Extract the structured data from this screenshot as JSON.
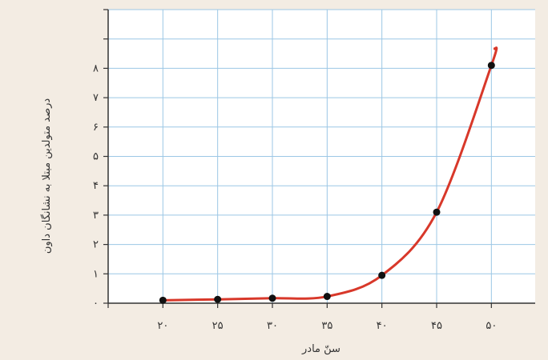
{
  "chart_data": {
    "type": "line",
    "xlabel": "سنّ مادر",
    "ylabel": "درصد متولدین مبتلا به نشانگان داون",
    "x_ticks": [
      20,
      25,
      30,
      35,
      40,
      45,
      50
    ],
    "x_tick_labels": [
      "۲۰",
      "۲۵",
      "۳۰",
      "۳۵",
      "۴۰",
      "۴۵",
      "۵۰"
    ],
    "y_ticks": [
      0,
      1,
      2,
      3,
      4,
      5,
      6,
      7,
      8
    ],
    "y_tick_labels": [
      "۰",
      "۱",
      "۲",
      "۳",
      "۴",
      "۵",
      "۶",
      "۷",
      "۸"
    ],
    "xlim": [
      15,
      54
    ],
    "ylim": [
      0,
      10
    ],
    "grid": true,
    "series": [
      {
        "x": [
          20,
          25,
          30,
          35,
          40,
          45,
          50
        ],
        "y": [
          0.1,
          0.13,
          0.17,
          0.23,
          0.95,
          3.1,
          8.1
        ]
      }
    ],
    "colors": {
      "line": "#d8382a",
      "points": "#111111",
      "grid": "#9cc7e5",
      "plot_background": "#ffffff",
      "page_background": "#f3ece3",
      "axis": "#333333"
    }
  }
}
